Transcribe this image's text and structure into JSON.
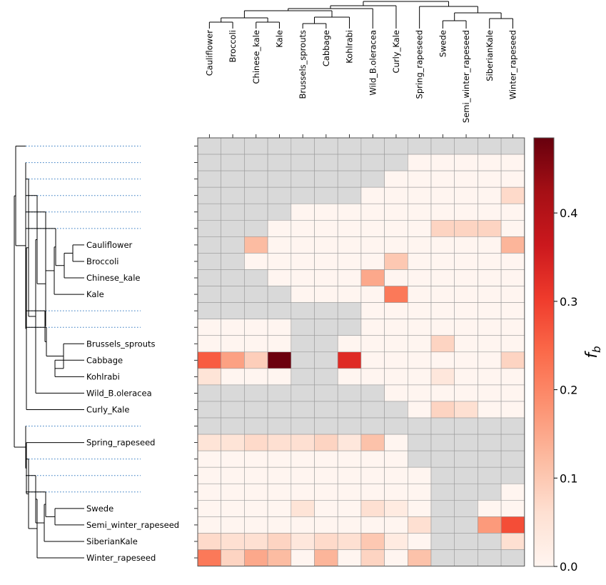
{
  "chart_data": {
    "type": "heatmap",
    "title": "",
    "colorbar": {
      "label_symbol": "f",
      "label_subscript": "b",
      "range": [
        0.0,
        0.485
      ],
      "ticks": [
        "0.0",
        "0.1",
        "0.2",
        "0.3",
        "0.4"
      ],
      "tick_values": [
        0.0,
        0.1,
        0.2,
        0.3,
        0.4
      ],
      "colormap": "Reds"
    },
    "columns": [
      "Cauliflower",
      "Broccoli",
      "Chinese_kale",
      "Kale",
      "Brussels_sprouts",
      "Cabbage",
      "Kohlrabi",
      "Wild_B.oleracea",
      "Curly_Kale",
      "Spring_rapeseed",
      "Swede",
      "Semi_winter_rapeseed",
      "SiberianKale",
      "Winter_rapeseed"
    ],
    "rows": [
      "",
      "",
      "",
      "",
      "",
      "",
      "Cauliflower",
      "Broccoli",
      "Chinese_kale",
      "Kale",
      "",
      "",
      "Brussels_sprouts",
      "Cabbage",
      "Kohlrabi",
      "Wild_B.oleracea",
      "Curly_Kale",
      "",
      "Spring_rapeseed",
      "",
      "",
      "",
      "Swede",
      "Semi_winter_rapeseed",
      "SiberianKale",
      "Winter_rapeseed"
    ],
    "missing_color": "#d9d9d9",
    "values": [
      [
        null,
        null,
        null,
        null,
        null,
        null,
        null,
        null,
        null,
        null,
        null,
        null,
        null,
        null
      ],
      [
        null,
        null,
        null,
        null,
        null,
        null,
        null,
        null,
        null,
        0,
        0,
        0,
        0,
        0
      ],
      [
        null,
        null,
        null,
        null,
        null,
        null,
        null,
        null,
        0,
        0,
        0,
        0,
        0,
        0
      ],
      [
        null,
        null,
        null,
        null,
        null,
        null,
        null,
        0,
        0,
        0,
        0,
        0,
        0,
        0.07
      ],
      [
        null,
        null,
        null,
        null,
        0,
        0,
        0,
        0,
        0,
        0,
        0,
        0,
        0,
        0
      ],
      [
        null,
        null,
        null,
        0,
        0,
        0,
        0,
        0,
        0,
        0,
        0.08,
        0.08,
        0.08,
        0
      ],
      [
        null,
        null,
        0.12,
        0,
        0,
        0,
        0,
        0,
        0,
        0,
        0,
        0,
        0,
        0.13
      ],
      [
        null,
        null,
        0,
        0,
        0,
        0,
        0,
        0,
        0.1,
        0,
        0,
        0,
        0,
        0
      ],
      [
        null,
        null,
        null,
        0,
        0,
        0,
        0,
        0.15,
        0,
        0,
        0,
        0,
        0,
        0
      ],
      [
        null,
        null,
        null,
        null,
        0,
        0,
        0,
        0,
        0.22,
        0,
        0,
        0,
        0,
        0
      ],
      [
        null,
        null,
        null,
        null,
        null,
        null,
        null,
        0,
        0,
        0,
        0,
        0,
        0,
        0
      ],
      [
        0,
        0,
        0,
        0,
        null,
        null,
        null,
        0,
        0,
        0,
        0,
        0,
        0,
        0
      ],
      [
        0,
        0,
        0,
        0,
        null,
        null,
        0,
        0,
        0,
        0,
        0.08,
        0,
        0,
        0
      ],
      [
        0.26,
        0.16,
        0.09,
        0.48,
        null,
        null,
        0.33,
        0,
        0,
        0,
        0,
        0,
        0,
        0.08
      ],
      [
        0.05,
        0,
        0,
        0,
        null,
        null,
        0,
        0,
        0,
        0,
        0.04,
        0,
        0,
        0
      ],
      [
        null,
        null,
        null,
        null,
        null,
        null,
        null,
        null,
        0,
        0,
        0,
        0,
        0,
        0
      ],
      [
        null,
        null,
        null,
        null,
        null,
        null,
        null,
        null,
        null,
        0,
        0.08,
        0.06,
        0,
        0
      ],
      [
        null,
        null,
        null,
        null,
        null,
        null,
        null,
        null,
        null,
        null,
        null,
        null,
        null,
        null
      ],
      [
        0.05,
        0.05,
        0.07,
        0.06,
        0.06,
        0.08,
        0.04,
        0.11,
        0,
        null,
        null,
        null,
        null,
        null
      ],
      [
        0,
        0,
        0,
        0,
        0,
        0,
        0,
        0,
        0,
        null,
        null,
        null,
        null,
        null
      ],
      [
        0,
        0,
        0,
        0,
        0,
        0,
        0,
        0,
        0,
        0,
        null,
        null,
        null,
        null
      ],
      [
        0,
        0,
        0,
        0,
        0,
        0,
        0,
        0,
        0,
        0,
        null,
        null,
        null,
        0
      ],
      [
        0,
        0,
        0,
        0,
        0.05,
        0,
        0,
        0.06,
        0.03,
        0,
        null,
        null,
        0,
        0
      ],
      [
        0,
        0,
        0,
        0,
        0,
        0,
        0,
        0,
        0,
        0.06,
        null,
        null,
        0.17,
        0.28
      ],
      [
        0.07,
        0.06,
        0.06,
        0.08,
        0.04,
        0.07,
        0.06,
        0.1,
        0.03,
        0,
        null,
        null,
        null,
        0.06
      ],
      [
        0.22,
        0.08,
        0.15,
        0.12,
        0,
        0.13,
        0,
        0.08,
        0,
        0.11,
        null,
        null,
        null,
        null
      ]
    ]
  }
}
